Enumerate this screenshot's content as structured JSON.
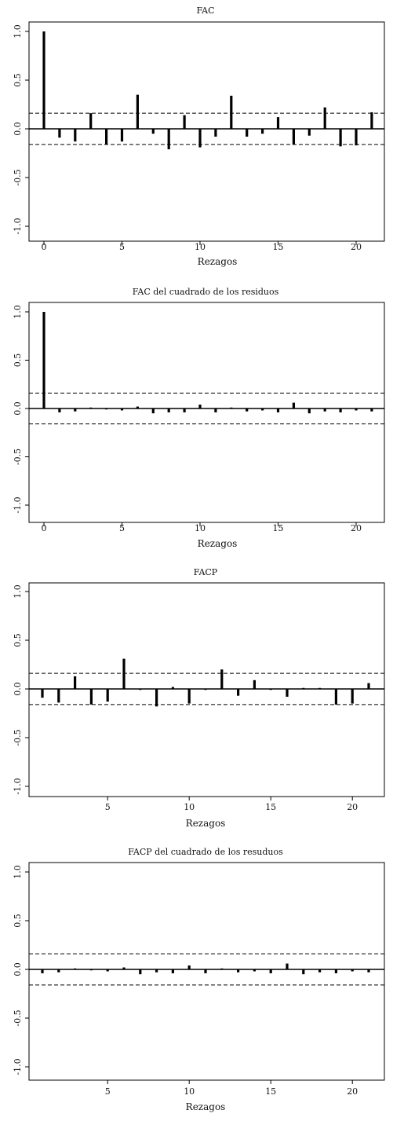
{
  "chart_data": [
    {
      "type": "bar",
      "title": "FAC",
      "xlabel": "Rezagos",
      "ylabel": "",
      "x_ticks": [
        "0",
        "5",
        "10",
        "15",
        "20"
      ],
      "y_ticks": [
        "1.0",
        "0.5",
        "0.0",
        "-0.5",
        "-1.0"
      ],
      "xlim": [
        -0.5,
        21.7
      ],
      "ylim": [
        -1.05,
        1.05
      ],
      "confidence_band": [
        0.16,
        -0.16
      ],
      "lags": [
        0,
        1,
        2,
        3,
        4,
        5,
        6,
        7,
        8,
        9,
        10,
        11,
        12,
        13,
        14,
        15,
        16,
        17,
        18,
        19,
        20,
        21
      ],
      "values": [
        1.0,
        -0.09,
        -0.13,
        0.16,
        -0.16,
        -0.13,
        0.35,
        -0.05,
        -0.21,
        0.14,
        -0.19,
        -0.08,
        0.34,
        -0.08,
        -0.05,
        0.12,
        -0.16,
        -0.07,
        0.22,
        -0.18,
        -0.17,
        0.17
      ]
    },
    {
      "type": "bar",
      "title": "FAC del cuadrado de los residuos",
      "xlabel": "Rezagos",
      "ylabel": "",
      "x_ticks": [
        "0",
        "5",
        "10",
        "15",
        "20"
      ],
      "y_ticks": [
        "1.0",
        "0.5",
        "0.0",
        "-0.5",
        "-1.0"
      ],
      "xlim": [
        -0.5,
        21.7
      ],
      "ylim": [
        -1.05,
        1.05
      ],
      "confidence_band": [
        0.16,
        -0.16
      ],
      "lags": [
        0,
        1,
        2,
        3,
        4,
        5,
        6,
        7,
        8,
        9,
        10,
        11,
        12,
        13,
        14,
        15,
        16,
        17,
        18,
        19,
        20,
        21
      ],
      "values": [
        1.0,
        -0.04,
        -0.03,
        0.01,
        -0.01,
        -0.02,
        0.02,
        -0.05,
        -0.04,
        -0.04,
        0.04,
        -0.04,
        0.01,
        -0.03,
        -0.02,
        -0.04,
        0.06,
        -0.05,
        -0.03,
        -0.04,
        -0.02,
        -0.03
      ]
    },
    {
      "type": "bar",
      "title": "FACP",
      "xlabel": "Rezagos",
      "ylabel": "",
      "x_ticks": [
        "5",
        "10",
        "15",
        "20"
      ],
      "y_ticks": [
        "1.0",
        "0.5",
        "0.0",
        "-0.5",
        "-1.0"
      ],
      "xlim": [
        0.3,
        21.7
      ],
      "ylim": [
        -1.05,
        1.05
      ],
      "confidence_band": [
        0.16,
        -0.16
      ],
      "lags": [
        1,
        2,
        3,
        4,
        5,
        6,
        7,
        8,
        9,
        10,
        11,
        12,
        13,
        14,
        15,
        16,
        17,
        18,
        19,
        20,
        21
      ],
      "values": [
        -0.09,
        -0.14,
        0.13,
        -0.16,
        -0.13,
        0.31,
        -0.01,
        -0.18,
        0.02,
        -0.15,
        -0.01,
        0.2,
        -0.07,
        0.09,
        -0.01,
        -0.08,
        0.01,
        0.01,
        -0.16,
        -0.15,
        0.06
      ]
    },
    {
      "type": "bar",
      "title": "FACP del cuadrado de los resuduos",
      "xlabel": "Rezagos",
      "ylabel": "",
      "x_ticks": [
        "5",
        "10",
        "15",
        "20"
      ],
      "y_ticks": [
        "1.0",
        "0.5",
        "0.0",
        "-0.5",
        "-1.0"
      ],
      "xlim": [
        0.3,
        21.7
      ],
      "ylim": [
        -1.05,
        1.05
      ],
      "confidence_band": [
        0.16,
        -0.16
      ],
      "lags": [
        1,
        2,
        3,
        4,
        5,
        6,
        7,
        8,
        9,
        10,
        11,
        12,
        13,
        14,
        15,
        16,
        17,
        18,
        19,
        20,
        21
      ],
      "values": [
        -0.04,
        -0.03,
        0.01,
        -0.01,
        -0.02,
        0.02,
        -0.05,
        -0.03,
        -0.04,
        0.04,
        -0.04,
        0.01,
        -0.03,
        -0.02,
        -0.04,
        0.06,
        -0.05,
        -0.03,
        -0.04,
        -0.02,
        -0.03
      ]
    }
  ]
}
